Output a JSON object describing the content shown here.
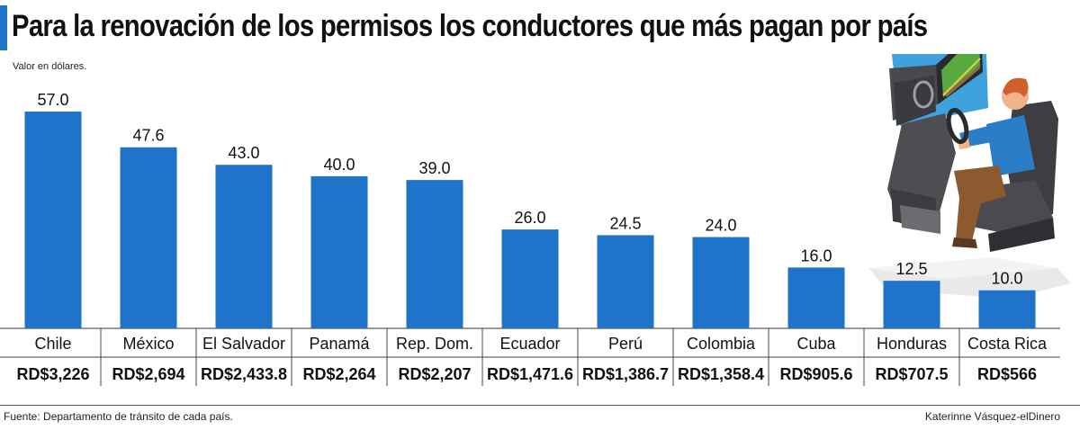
{
  "title": "Para la renovación de los permisos los conductores que más pagan por país",
  "unit_note": "Valor en dólares.",
  "source": "Fuente: Departamento de tránsito de cada país.",
  "credit": "Katerinne Vásquez-elDinero",
  "colors": {
    "bar": "#1f73c8",
    "accent": "#1f73c8"
  },
  "illustration": "driving-simulator-illustration",
  "chart_data": {
    "type": "bar",
    "title": "Para la renovación de los permisos los conductores que más pagan por país",
    "ylabel": "Valor en dólares.",
    "categories": [
      "Chile",
      "México",
      "El Salvador",
      "Panamá",
      "Rep. Dom.",
      "Ecuador",
      "Perú",
      "Colombia",
      "Cuba",
      "Honduras",
      "Costa Rica"
    ],
    "values": [
      57.0,
      47.6,
      43.0,
      40.0,
      39.0,
      26.0,
      24.5,
      24.0,
      16.0,
      12.5,
      10.0
    ],
    "value_labels": [
      "57.0",
      "47.6",
      "43.0",
      "40.0",
      "39.0",
      "26.0",
      "24.5",
      "24.0",
      "16.0",
      "12.5",
      "10.0"
    ],
    "local_currency": [
      "RD$3,226",
      "RD$2,694",
      "RD$2,433.8",
      "RD$2,264",
      "RD$2,207",
      "RD$1,471.6",
      "RD$1,386.7",
      "RD$1,358.4",
      "RD$905.6",
      "RD$707.5",
      "RD$566"
    ],
    "ylim": [
      0,
      57
    ],
    "grid": false,
    "legend": "none"
  }
}
